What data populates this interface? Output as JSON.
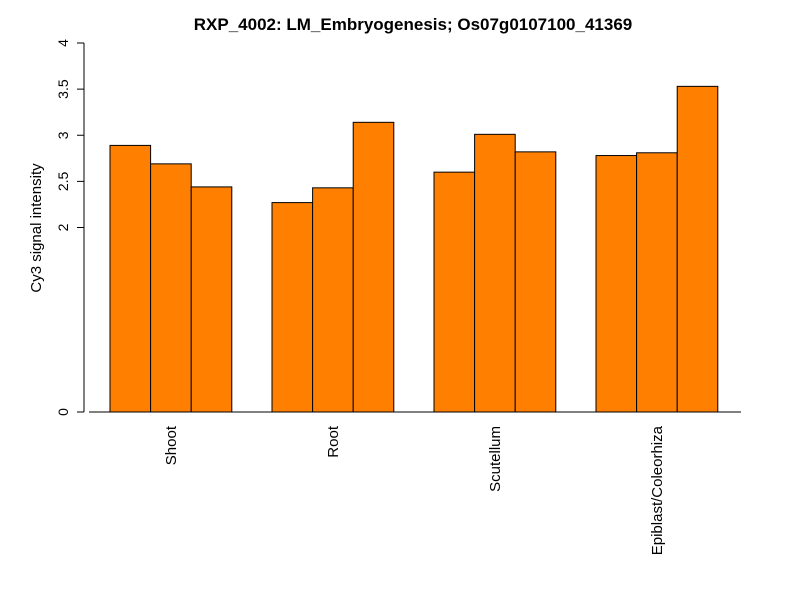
{
  "chart_data": {
    "type": "bar",
    "title": "RXP_4002: LM_Embryogenesis; Os07g0107100_41369",
    "xlabel": "",
    "ylabel": "Cy3 signal intensity",
    "ylim": [
      0,
      4
    ],
    "y_ticks": [
      "0",
      "2",
      "2.5",
      "3",
      "3.5",
      "4"
    ],
    "y_tick_values": [
      0,
      2,
      2.5,
      3,
      3.5,
      4
    ],
    "categories": [
      "Shoot",
      "Root",
      "Scutellum",
      "Epiblast/Coleorhiza"
    ],
    "bars_per_category": 3,
    "values": [
      [
        2.89,
        2.69,
        2.44
      ],
      [
        2.27,
        2.43,
        3.14
      ],
      [
        2.6,
        3.01,
        2.82
      ],
      [
        2.78,
        2.81,
        3.53
      ]
    ],
    "bar_color": "#FF8000",
    "bar_border_color": "#000000",
    "grid": false
  }
}
